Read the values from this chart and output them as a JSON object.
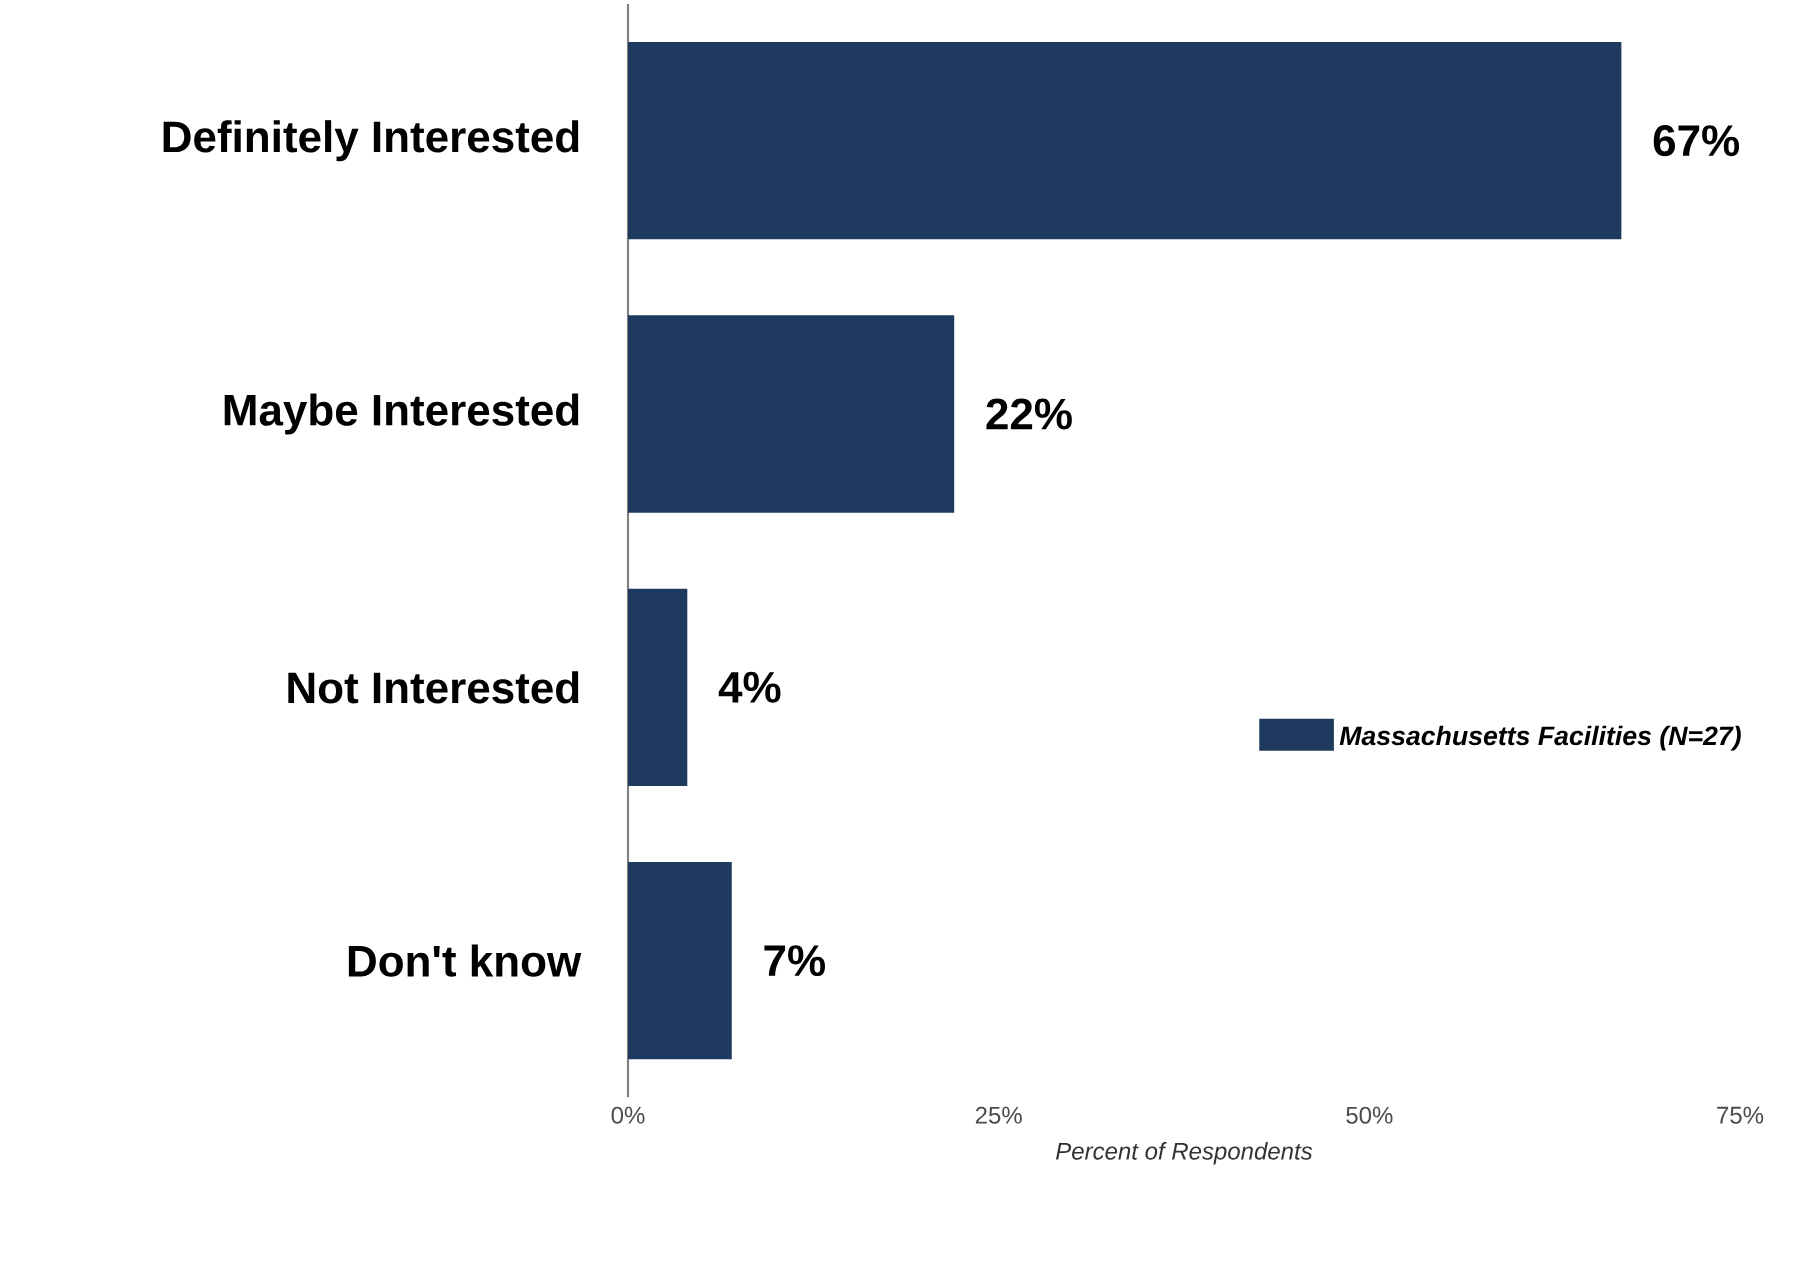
{
  "chart_data": {
    "type": "bar",
    "orientation": "horizontal",
    "categories": [
      "Definitely Interested",
      "Maybe Interested",
      "Not Interested",
      "Don't know"
    ],
    "series": [
      {
        "name": "Massachusetts Facilities (N=27)",
        "color": "#1f3a5f",
        "values": [
          67,
          22,
          4,
          7
        ],
        "value_labels": [
          "67%",
          "22%",
          "4%",
          "7%"
        ]
      }
    ],
    "xlim": [
      0,
      75
    ],
    "xticks": [
      {
        "value": 0,
        "label": "0%"
      },
      {
        "value": 25,
        "label": "25%"
      },
      {
        "value": 50,
        "label": "50%"
      },
      {
        "value": 75,
        "label": "75%"
      }
    ],
    "xlabel": "Percent of Respondents",
    "legend": "right"
  }
}
